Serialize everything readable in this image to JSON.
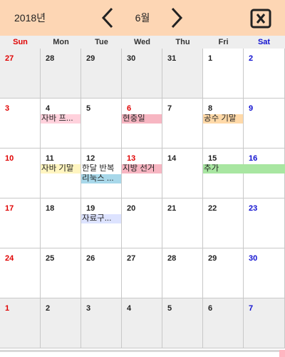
{
  "header": {
    "year": "2018년",
    "month": "6월",
    "prev_icon": "chevron-left-icon",
    "next_icon": "chevron-right-icon",
    "close_icon": "close-box-icon"
  },
  "weekdays": [
    "Sun",
    "Mon",
    "Tue",
    "Wed",
    "Thu",
    "Fri",
    "Sat"
  ],
  "weeks": [
    [
      "27",
      "28",
      "29",
      "30",
      "31",
      "1",
      "2"
    ],
    [
      "3",
      "4",
      "5",
      "6",
      "7",
      "8",
      "9"
    ],
    [
      "10",
      "11",
      "12",
      "13",
      "14",
      "15",
      "16"
    ],
    [
      "17",
      "18",
      "19",
      "20",
      "21",
      "22",
      "23"
    ],
    [
      "24",
      "25",
      "26",
      "27",
      "28",
      "29",
      "30"
    ],
    [
      "1",
      "2",
      "3",
      "4",
      "5",
      "6",
      "7"
    ]
  ],
  "events": [
    {
      "title": "자바 프...",
      "color": "#ffd1dc"
    },
    {
      "title": "현충일",
      "color": "#f7b6c2"
    },
    {
      "title": "공수 기말",
      "color": "#ffd9a8"
    },
    {
      "title": "자바 기말",
      "color": "#fff5c0"
    },
    {
      "title": "한달 반복",
      "color": "#ffffff"
    },
    {
      "title": "리눅스 ...",
      "color": "#a8d8ea"
    },
    {
      "title": "지방 선거",
      "color": "#f7b6c2"
    },
    {
      "title": "추가",
      "color": "#a8e6a1"
    },
    {
      "title": "자료구...",
      "color": "#dde3ff"
    }
  ],
  "colors": {
    "header_bg": "#fdd6b4",
    "sunday": "#e00000",
    "saturday": "#1010d0",
    "other_month_bg": "#eeeeee"
  }
}
